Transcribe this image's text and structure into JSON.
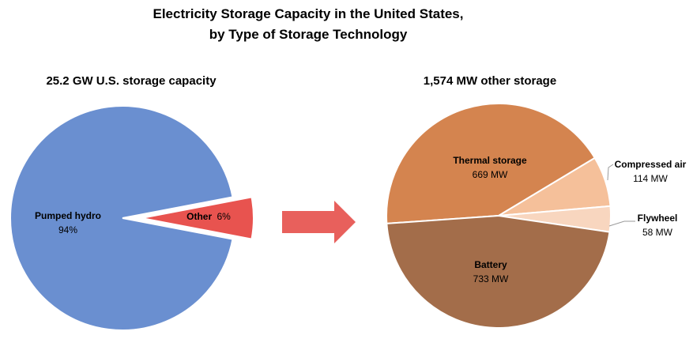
{
  "title_line1": "Electricity Storage Capacity in the United States,",
  "title_line2": "by Type of Storage Technology",
  "chart_data": [
    {
      "type": "pie",
      "title": "25.2 GW U.S. storage capacity",
      "slices": [
        {
          "name": "Pumped hydro",
          "value": 94,
          "label": "94%",
          "color": "#6a8fd0"
        },
        {
          "name": "Other",
          "value": 6,
          "label": "6%",
          "color": "#e8534f",
          "exploded": true
        }
      ]
    },
    {
      "type": "pie",
      "title": "1,574 MW other storage",
      "slices": [
        {
          "name": "Thermal storage",
          "value": 669,
          "label": "669 MW",
          "color": "#d4844f"
        },
        {
          "name": "Compressed air",
          "value": 114,
          "label": "114 MW",
          "color": "#f5c09a"
        },
        {
          "name": "Flywheel",
          "value": 58,
          "label": "58 MW",
          "color": "#f8d6bf"
        },
        {
          "name": "Battery",
          "value": 733,
          "label": "733 MW",
          "color": "#a36d4a"
        }
      ]
    }
  ],
  "arrow": {
    "color": "#e8605c"
  }
}
